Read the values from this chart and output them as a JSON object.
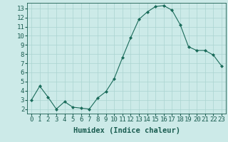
{
  "x": [
    0,
    1,
    2,
    3,
    4,
    5,
    6,
    7,
    8,
    9,
    10,
    11,
    12,
    13,
    14,
    15,
    16,
    17,
    18,
    19,
    20,
    21,
    22,
    23
  ],
  "y": [
    3.0,
    4.5,
    3.3,
    2.0,
    2.8,
    2.2,
    2.1,
    2.0,
    3.2,
    3.9,
    5.3,
    7.6,
    9.8,
    11.8,
    12.6,
    13.2,
    13.3,
    12.8,
    11.2,
    8.8,
    8.4,
    8.4,
    7.9,
    6.7
  ],
  "line_color": "#1a6b5a",
  "marker": "D",
  "marker_size": 2,
  "bg_color": "#cceae8",
  "grid_color": "#aad4d0",
  "xlabel": "Humidex (Indice chaleur)",
  "xlim": [
    -0.5,
    23.5
  ],
  "ylim": [
    1.5,
    13.6
  ],
  "yticks": [
    2,
    3,
    4,
    5,
    6,
    7,
    8,
    9,
    10,
    11,
    12,
    13
  ],
  "xticks": [
    0,
    1,
    2,
    3,
    4,
    5,
    6,
    7,
    8,
    9,
    10,
    11,
    12,
    13,
    14,
    15,
    16,
    17,
    18,
    19,
    20,
    21,
    22,
    23
  ],
  "tick_label_size": 6.5,
  "xlabel_size": 7.5,
  "axis_color": "#1a5c50",
  "spine_color": "#1a5c50",
  "linewidth": 0.8
}
